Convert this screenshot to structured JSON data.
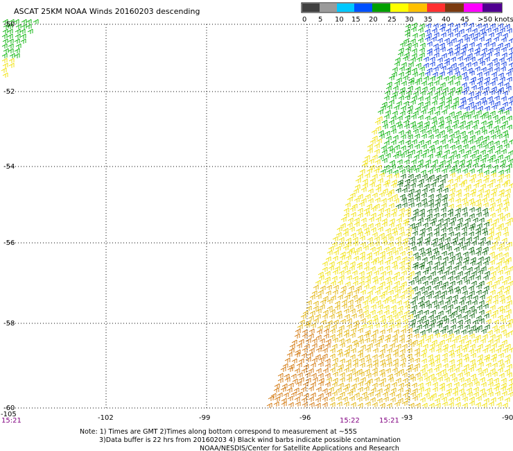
{
  "title": "ASCAT 25KM NOAA Winds 20160203 descending",
  "legend": {
    "labels": [
      "0",
      "5",
      "10",
      "15",
      "20",
      "25",
      "30",
      "35",
      "40",
      "45",
      ">50 knots"
    ],
    "colors": [
      "#404040",
      "#9a9a9a",
      "#00c8ff",
      "#0050ff",
      "#00a000",
      "#ffff00",
      "#ffc000",
      "#ff3030",
      "#7a3a10",
      "#ff00ff",
      "#500090"
    ]
  },
  "lat_labels": [
    "-50",
    "-52",
    "-54",
    "-56",
    "-58",
    "-60"
  ],
  "lon_labels": [
    "-105",
    "-102",
    "-99",
    "-96",
    "-93",
    "-90"
  ],
  "times": [
    "15:21",
    "15:22",
    "15:21"
  ],
  "notes": [
    "Note: 1) Times are GMT 2)Times along bottom correspond to measurement at ~55S",
    "3)Data buffer is 22 hrs from 20160203 4) Black wind barbs indicate possible contamination",
    "NOAA/NESDIS/Center for Satellite Applications and Research"
  ],
  "barb_colors": {
    "blue": "#0030e0",
    "green": "#00b000",
    "darkgreen": "#006000",
    "yellow": "#f0e000",
    "gold": "#e0b000",
    "orange": "#d07000"
  }
}
